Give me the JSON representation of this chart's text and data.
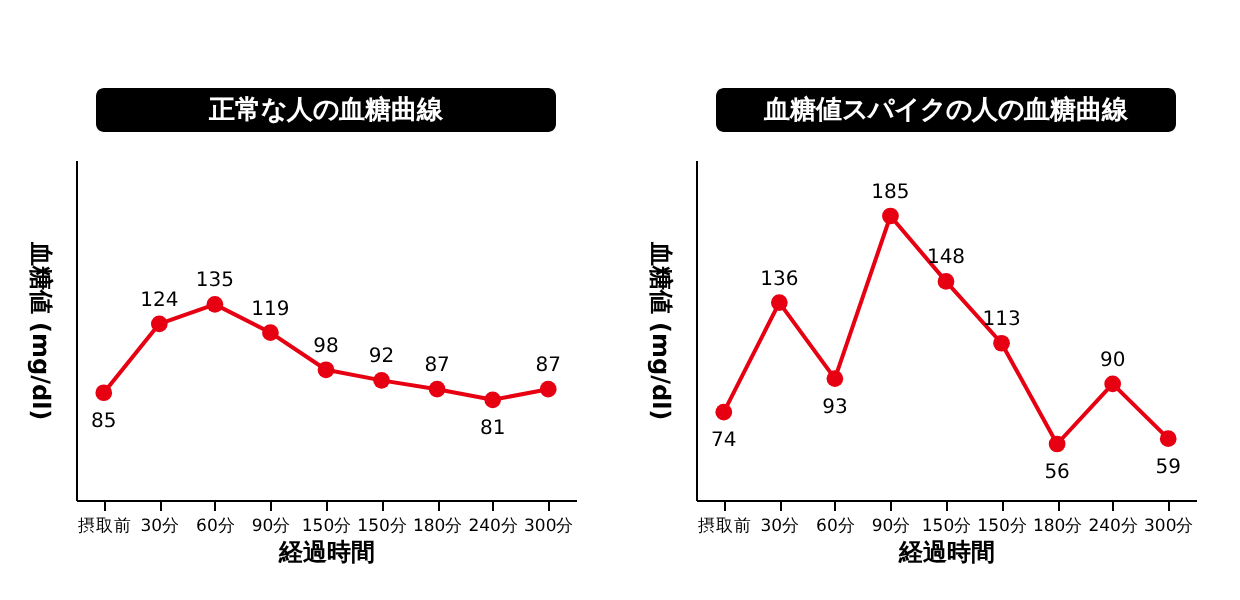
{
  "chart_data": [
    {
      "type": "line",
      "title": "正常な人の血糖曲線",
      "xlabel": "経過時間",
      "ylabel": "血糖値 (mg/dl)",
      "categories": [
        "摂取前",
        "30分",
        "60分",
        "90分",
        "150分",
        "150分",
        "180分",
        "240分",
        "300分"
      ],
      "series": [
        {
          "color": "#e60012",
          "values": [
            85,
            124,
            135,
            119,
            98,
            92,
            87,
            81,
            87
          ]
        }
      ],
      "data_labels": true,
      "marker": "circle",
      "line_style": "solid",
      "grid": false,
      "legend": false,
      "tick_labels": "x"
    },
    {
      "type": "line",
      "title": "血糖値スパイクの人の血糖曲線",
      "xlabel": "経過時間",
      "ylabel": "血糖値 (mg/dl)",
      "categories": [
        "摂取前",
        "30分",
        "60分",
        "90分",
        "150分",
        "150分",
        "180分",
        "240分",
        "300分"
      ],
      "series": [
        {
          "color": "#e60012",
          "values": [
            74,
            136,
            93,
            185,
            148,
            113,
            56,
            90,
            59
          ]
        }
      ],
      "data_labels": true,
      "marker": "circle",
      "line_style": "solid",
      "grid": false,
      "legend": false,
      "tick_labels": "x"
    }
  ]
}
